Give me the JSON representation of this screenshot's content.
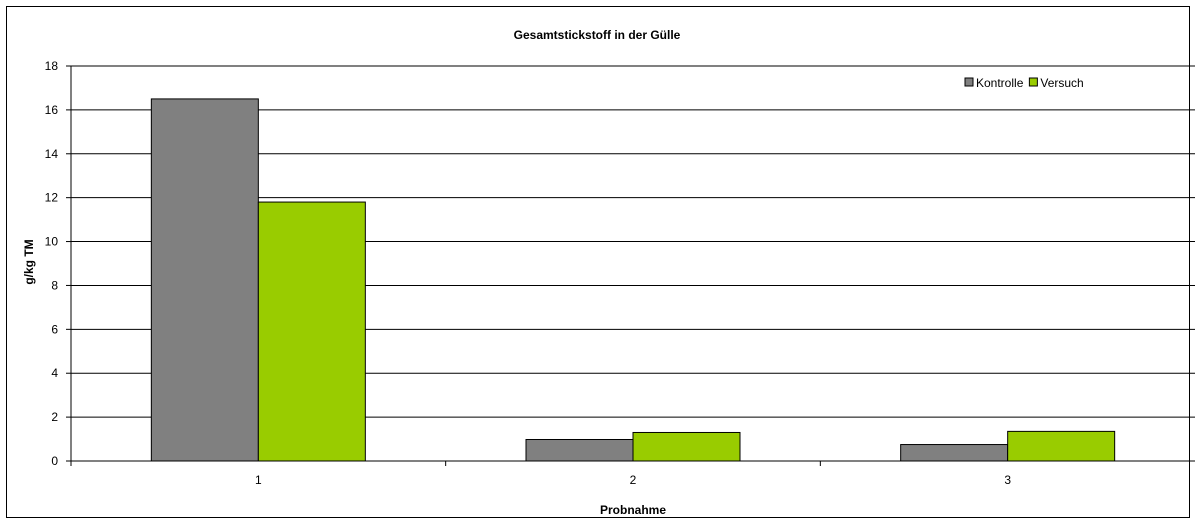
{
  "chart_data": {
    "type": "bar",
    "title": "Gesamtstickstoff in der Gülle",
    "xlabel": "Probnahme",
    "ylabel": "g/kg TM",
    "categories": [
      "1",
      "2",
      "3"
    ],
    "series": [
      {
        "name": "Kontrolle",
        "color": "#808080",
        "values": [
          16.5,
          0.98,
          0.75
        ]
      },
      {
        "name": "Versuch",
        "color": "#99cc00",
        "values": [
          11.8,
          1.3,
          1.35
        ]
      }
    ],
    "ylim": [
      0,
      18
    ],
    "yticks": [
      0,
      2,
      4,
      6,
      8,
      10,
      12,
      14,
      16,
      18
    ],
    "grid": true,
    "legend_position": "top-right"
  }
}
